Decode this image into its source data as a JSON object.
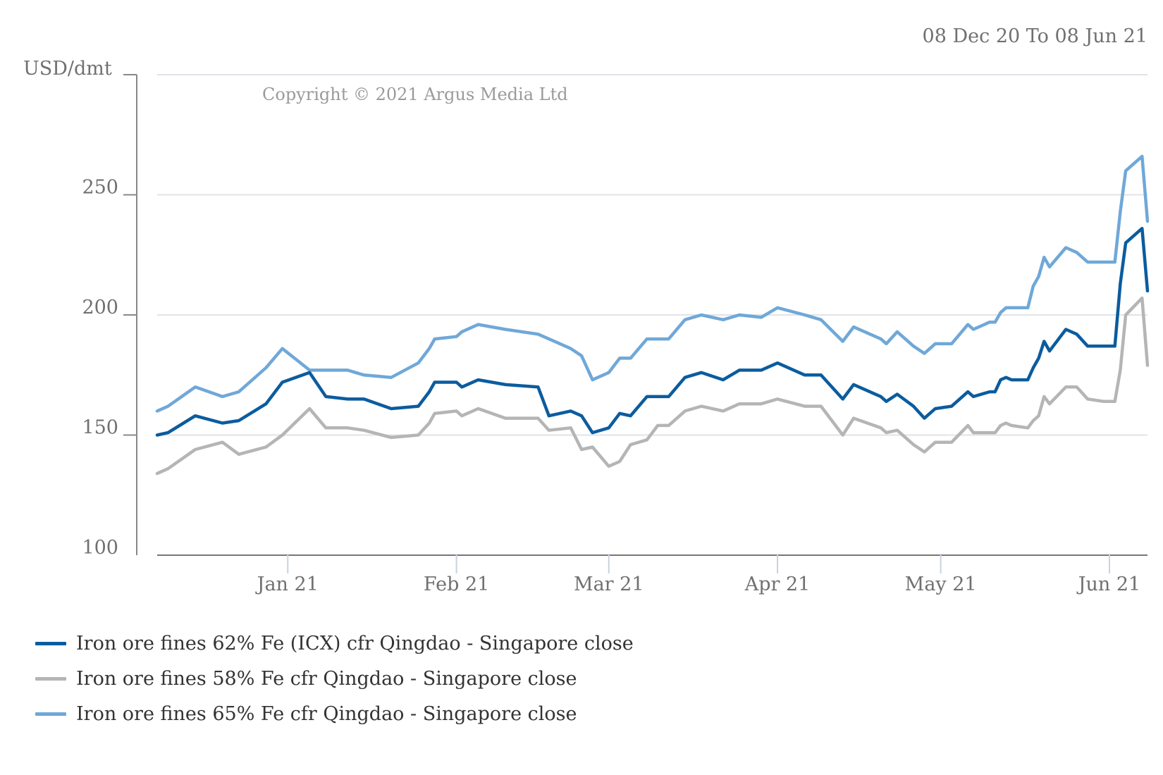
{
  "chart_data": {
    "type": "line",
    "date_range_label": "08 Dec 20 To 08 Jun 21",
    "ylabel": "USD/dmt",
    "copyright": "Copyright © 2021 Argus Media Ltd",
    "ylim": [
      100,
      300
    ],
    "yticks": [
      100,
      150,
      200,
      250
    ],
    "xlim": [
      "2020-12-08",
      "2021-06-08"
    ],
    "x_tick_labels": [
      {
        "date": "2021-01-01",
        "label": "Jan 21"
      },
      {
        "date": "2021-02-01",
        "label": "Feb 21"
      },
      {
        "date": "2021-03-01",
        "label": "Mar 21"
      },
      {
        "date": "2021-04-01",
        "label": "Apr 21"
      },
      {
        "date": "2021-05-01",
        "label": "May 21"
      },
      {
        "date": "2021-06-01",
        "label": "Jun 21"
      }
    ],
    "grid": true,
    "legend_position": "bottom-left",
    "x": [
      "2020-12-08",
      "2020-12-10",
      "2020-12-15",
      "2020-12-20",
      "2020-12-23",
      "2020-12-28",
      "2020-12-31",
      "2021-01-05",
      "2021-01-08",
      "2021-01-12",
      "2021-01-15",
      "2021-01-20",
      "2021-01-25",
      "2021-01-27",
      "2021-01-28",
      "2021-02-01",
      "2021-02-02",
      "2021-02-05",
      "2021-02-10",
      "2021-02-16",
      "2021-02-18",
      "2021-02-22",
      "2021-02-24",
      "2021-02-26",
      "2021-03-01",
      "2021-03-03",
      "2021-03-05",
      "2021-03-08",
      "2021-03-10",
      "2021-03-12",
      "2021-03-15",
      "2021-03-18",
      "2021-03-22",
      "2021-03-25",
      "2021-03-29",
      "2021-04-01",
      "2021-04-06",
      "2021-04-09",
      "2021-04-13",
      "2021-04-15",
      "2021-04-20",
      "2021-04-21",
      "2021-04-23",
      "2021-04-26",
      "2021-04-28",
      "2021-04-30",
      "2021-05-03",
      "2021-05-06",
      "2021-05-07",
      "2021-05-10",
      "2021-05-11",
      "2021-05-12",
      "2021-05-13",
      "2021-05-14",
      "2021-05-17",
      "2021-05-18",
      "2021-05-19",
      "2021-05-20",
      "2021-05-21",
      "2021-05-24",
      "2021-05-26",
      "2021-05-28",
      "2021-05-31",
      "2021-06-02",
      "2021-06-03",
      "2021-06-04",
      "2021-06-07",
      "2021-06-08"
    ],
    "series": [
      {
        "name": "Iron ore fines 62% Fe (ICX) cfr Qingdao - Singapore close",
        "color": "#0b5c9e",
        "values": [
          150,
          151,
          158,
          155,
          156,
          163,
          172,
          176,
          166,
          165,
          165,
          161,
          162,
          168,
          172,
          172,
          170,
          173,
          171,
          170,
          158,
          160,
          158,
          151,
          153,
          159,
          158,
          166,
          166,
          166,
          174,
          176,
          173,
          177,
          177,
          180,
          175,
          175,
          165,
          171,
          166,
          164,
          167,
          162,
          157,
          161,
          162,
          168,
          166,
          168,
          168,
          173,
          174,
          173,
          173,
          178,
          182,
          189,
          185,
          194,
          192,
          187,
          187,
          187,
          213,
          230,
          236,
          210
        ]
      },
      {
        "name": "Iron ore fines 58% Fe cfr Qingdao - Singapore close",
        "color": "#b5b5b5",
        "values": [
          134,
          136,
          144,
          147,
          142,
          145,
          150,
          161,
          153,
          153,
          152,
          149,
          150,
          155,
          159,
          160,
          158,
          161,
          157,
          157,
          152,
          153,
          144,
          145,
          137,
          139,
          146,
          148,
          154,
          154,
          160,
          162,
          160,
          163,
          163,
          165,
          162,
          162,
          150,
          157,
          153,
          151,
          152,
          146,
          143,
          147,
          147,
          154,
          151,
          151,
          151,
          154,
          155,
          154,
          153,
          156,
          158,
          166,
          163,
          170,
          170,
          165,
          164,
          164,
          177,
          200,
          207,
          179
        ]
      },
      {
        "name": "Iron ore fines 65% Fe cfr Qingdao - Singapore close",
        "color": "#6fa8d8",
        "values": [
          160,
          162,
          170,
          166,
          168,
          178,
          186,
          177,
          177,
          177,
          175,
          174,
          180,
          186,
          190,
          191,
          193,
          196,
          194,
          192,
          190,
          186,
          183,
          173,
          176,
          182,
          182,
          190,
          190,
          190,
          198,
          200,
          198,
          200,
          199,
          203,
          200,
          198,
          189,
          195,
          190,
          188,
          193,
          187,
          184,
          188,
          188,
          196,
          194,
          197,
          197,
          201,
          203,
          203,
          203,
          212,
          216,
          224,
          220,
          228,
          226,
          222,
          222,
          222,
          243,
          260,
          266,
          239
        ]
      }
    ]
  }
}
